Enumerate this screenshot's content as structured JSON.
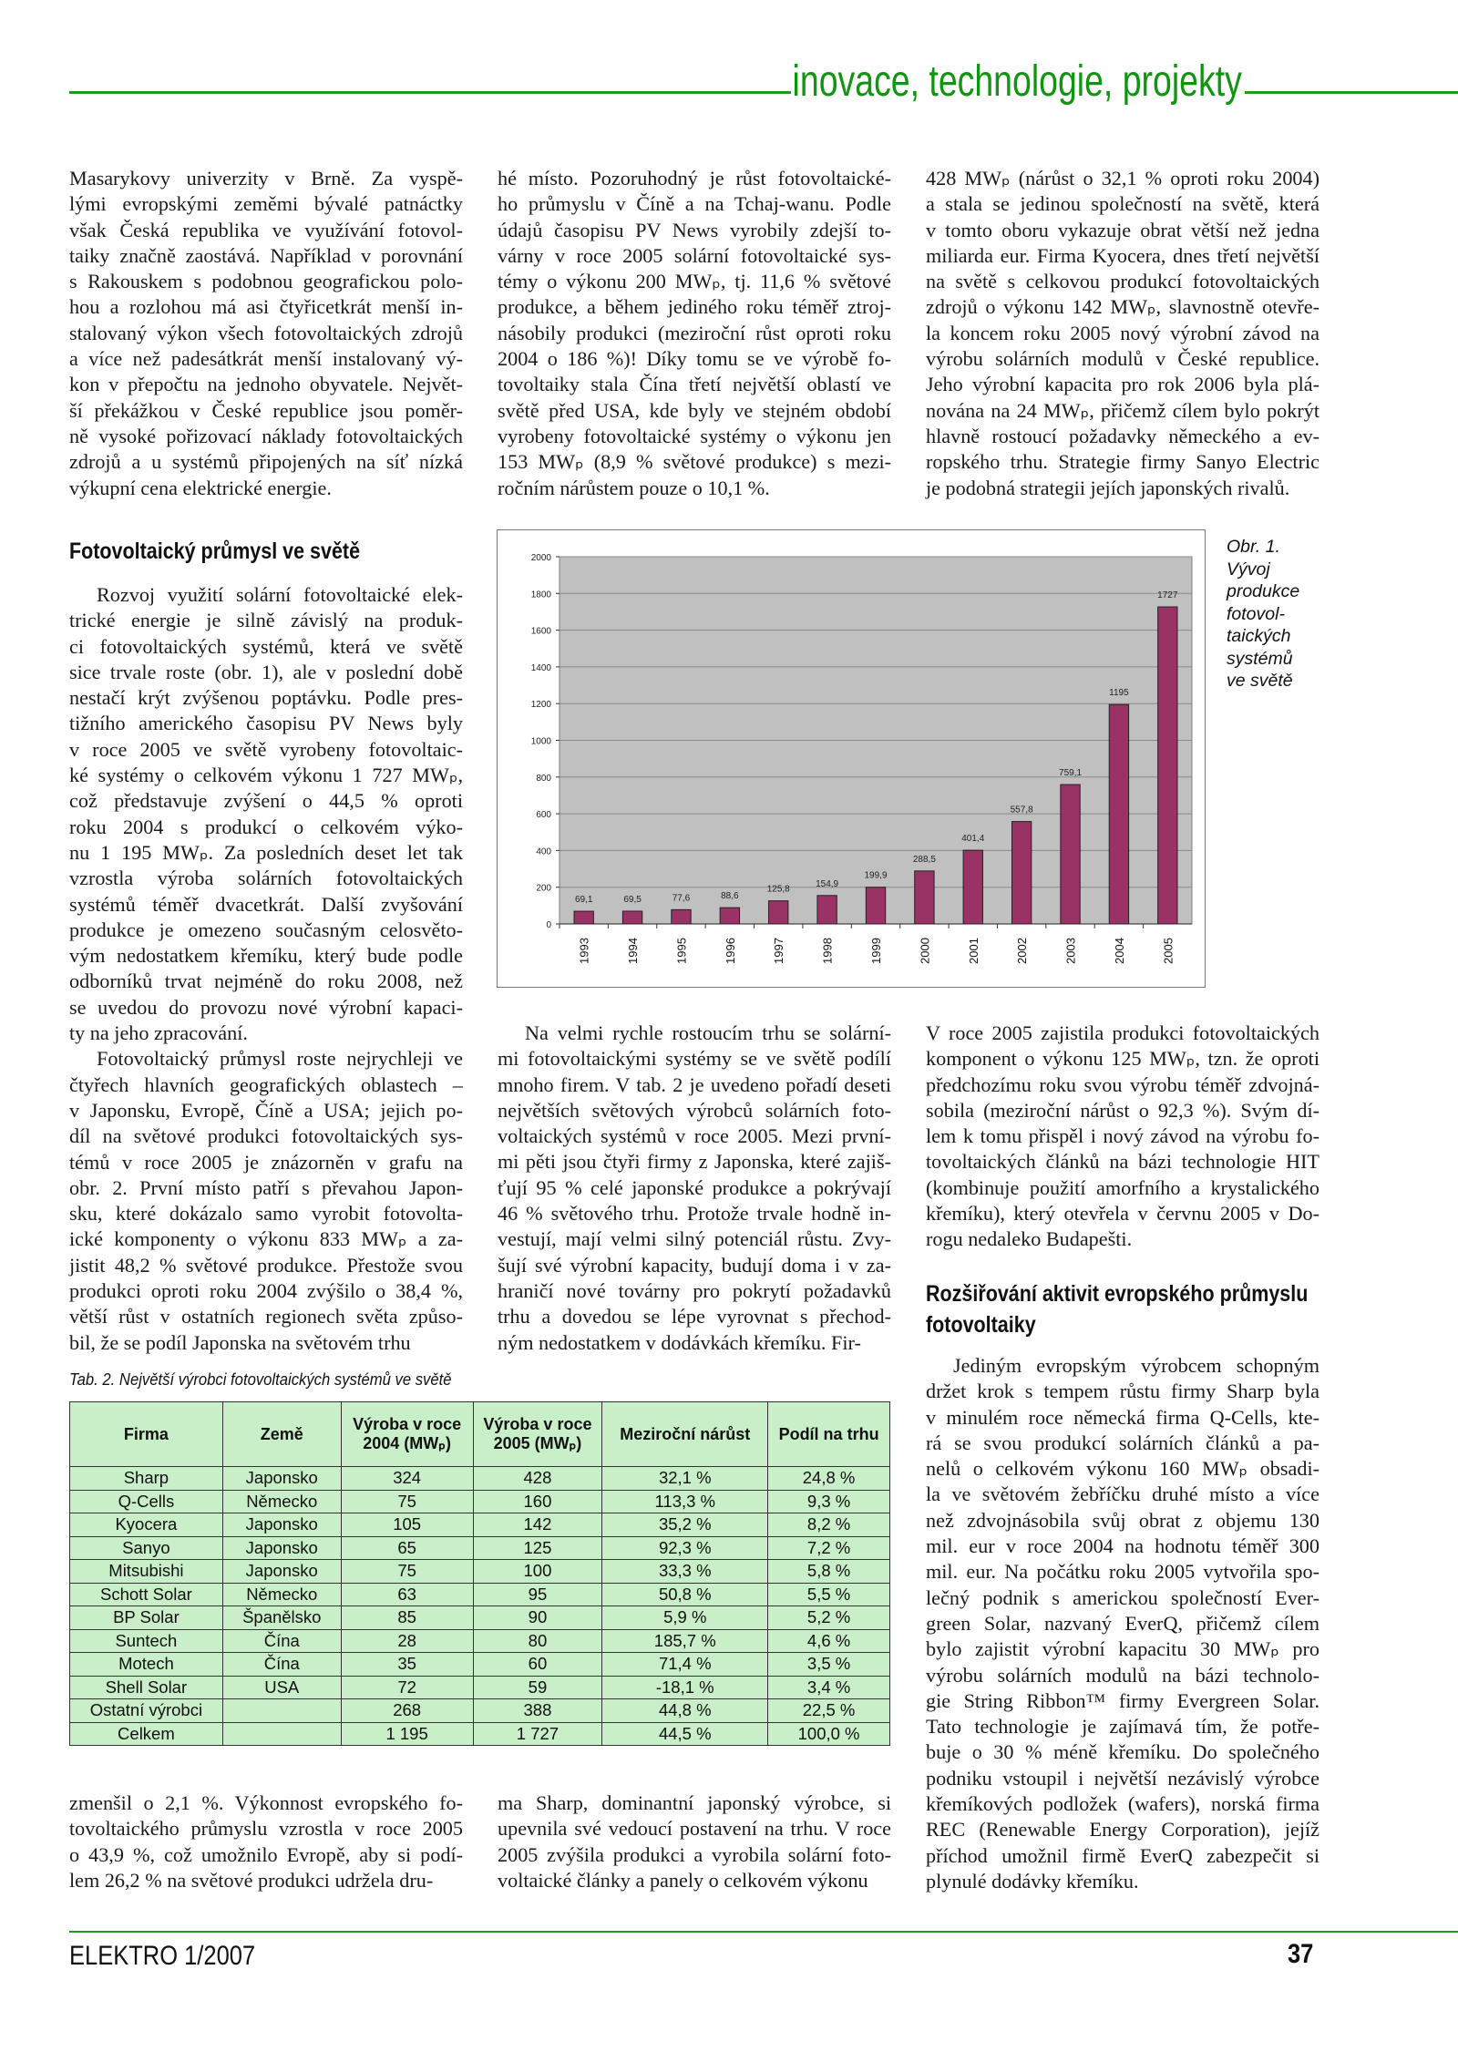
{
  "header": {
    "section_title": "inovace, technologie, projekty",
    "accent_color": "#1f9a1f"
  },
  "col1_top": [
    {
      "indent": false,
      "lines": [
        "Masarykovy univerzity v Brně. Za vyspě-",
        "lými evropskými zeměmi bývalé patnáctky",
        "však Česká republika ve využívání fotovol-",
        "taiky značně zaostává. Například v porovnání",
        "s Rakouskem s podobnou geografickou polo-",
        "hou a rozlohou má asi čtyřicetkrát menší in-",
        "stalovaný výkon všech fotovoltaických zdrojů",
        "a více než padesátkrát menší instalovaný vý-",
        "kon v přepočtu na jednoho obyvatele. Největ-",
        "ší překážkou v České republice jsou poměr-",
        "ně vysoké pořizovací náklady fotovoltaických",
        "zdrojů a u systémů připojených na síť nízká",
        "výkupní cena elektrické energie."
      ]
    }
  ],
  "col1_heading": "Fotovoltaický průmysl ve světě",
  "col1_body": [
    {
      "indent": true,
      "lines": [
        "Rozvoj využití solární fotovoltaické elek-",
        "trické energie je silně závislý na produk-",
        "ci fotovoltaických systémů, která ve světě",
        "sice trvale roste (obr. 1), ale v poslední době",
        "nestačí krýt zvýšenou poptávku. Podle pres-",
        "tižního amerického časopisu PV News byly",
        "v roce 2005 ve světě vyrobeny fotovoltaic-",
        "ké systémy o celkovém výkonu 1 727 MWₚ,",
        "což představuje zvýšení o 44,5 % oproti",
        "roku 2004 s produkcí o celkovém výko-",
        "nu 1 195 MWₚ. Za posledních deset let tak",
        "vzrostla výroba solárních fotovoltaických",
        "systémů téměř dvacetkrát. Další zvyšování",
        "produkce je omezeno současným celosvěto-",
        "vým nedostatkem křemíku, který bude podle",
        "odborníků trvat nejméně do roku 2008, než",
        "se uvedou do provozu nové výrobní kapaci-",
        "ty na jeho zpracování."
      ]
    },
    {
      "indent": true,
      "lines": [
        "Fotovoltaický průmysl roste nejrychleji ve",
        "čtyřech hlavních geografických oblastech –",
        "v Japonsku, Evropě, Číně a USA; jejich po-",
        "díl na světové produkci fotovoltaických sys-",
        "témů v roce 2005 je znázorněn v grafu na",
        "obr. 2. První místo patří s převahou Japon-",
        "sku, které dokázalo samo vyrobit fotovolta-",
        "ické komponenty o výkonu 833 MWₚ a za-",
        "jistit 48,2 % světové produkce. Přestože svou",
        "produkci oproti roku 2004 zvýšilo o 38,4 %,",
        "větší růst v ostatních regionech světa způso-",
        "bil, že se podíl Japonska na světovém trhu"
      ]
    }
  ],
  "col2_top": [
    {
      "indent": false,
      "lines": [
        "hé místo. Pozoruhodný je růst fotovoltaické-",
        "ho průmyslu v Číně a na Tchaj-wanu. Podle",
        "údajů časopisu PV News vyrobily zdejší to-",
        "várny v roce 2005 solární fotovoltaické sys-",
        "témy o výkonu 200 MWₚ, tj. 11,6 % světové",
        "produkce, a během jediného roku téměř ztroj-",
        "násobily produkci (meziroční růst oproti roku",
        "2004 o 186 %)! Díky tomu se ve výrobě fo-",
        "tovoltaiky stala Čína třetí největší oblastí ve",
        "světě před USA, kde byly ve stejném období",
        "vyrobeny fotovoltaické systémy o výkonu jen",
        "153 MWₚ (8,9 % světové produkce) s mezi-",
        "ročním nárůstem pouze o 10,1 %."
      ]
    }
  ],
  "col3_top": [
    {
      "indent": false,
      "lines": [
        "428 MWₚ (nárůst o 32,1 % oproti roku 2004)",
        "a stala se jedinou společností na světě, která",
        "v tomto oboru vykazuje obrat větší než jedna",
        "miliarda eur. Firma Kyocera, dnes třetí největší",
        "na světě s celkovou produkcí fotovoltaických",
        "zdrojů o výkonu 142 MWₚ, slavnostně otevře-",
        "la koncem roku 2005 nový výrobní závod na",
        "výrobu solárních modulů v České republice.",
        "Jeho výrobní kapacita pro rok 2006 byla plá-",
        "nována na 24 MWₚ, přičemž cílem bylo pokrýt",
        "hlavně rostoucí požadavky německého a ev-",
        "ropského trhu. Strategie firmy Sanyo Electric",
        "je podobná strategii jejích japonských rivalů."
      ]
    }
  ],
  "figure": {
    "caption_lines": [
      "Obr. 1.",
      "Vývoj",
      "produkce",
      "fotovol-",
      "taických",
      "systémů",
      "ve světě"
    ]
  },
  "chart_data": {
    "type": "bar",
    "title": "",
    "xlabel": "",
    "ylabel": "",
    "categories": [
      "1993",
      "1994",
      "1995",
      "1996",
      "1997",
      "1998",
      "1999",
      "2000",
      "2001",
      "2002",
      "2003",
      "2004",
      "2005"
    ],
    "values": [
      69.1,
      69.5,
      77.6,
      88.6,
      125.8,
      154.9,
      199.9,
      288.5,
      401.4,
      557.8,
      759.1,
      1195,
      1727
    ],
    "value_labels": [
      "69,1",
      "69,5",
      "77,6",
      "88,6",
      "125,8",
      "154,9",
      "199,9",
      "288,5",
      "401,4",
      "557,8",
      "759,1",
      "1195",
      "1727"
    ],
    "ylim": [
      0,
      2000
    ],
    "yticks": [
      0,
      200,
      400,
      600,
      800,
      1000,
      1200,
      1400,
      1600,
      1800,
      2000
    ],
    "grid": true,
    "legend": "none",
    "bar_color": "#993366",
    "plot_background": "#c0c0c0"
  },
  "col2_mid": [
    {
      "indent": true,
      "lines": [
        "Na velmi rychle rostoucím trhu se solární-",
        "mi fotovoltaickými systémy se ve světě podílí",
        "mnoho firem. V tab. 2 je uvedeno pořadí deseti",
        "největších světových výrobců solárních foto-",
        "voltaických systémů v roce 2005. Mezi první-",
        "mi pěti jsou čtyři firmy z Japonska, které zajiš-",
        "ťují 95 % celé japonské produkce a pokrývají",
        "46 % světového trhu. Protože trvale hodně in-",
        "vestují, mají velmi silný potenciál růstu. Zvy-",
        "šují své výrobní kapacity, budují doma i v za-",
        "hraničí nové továrny pro pokrytí požadavků",
        "trhu a dovedou se lépe vyrovnat s přechod-",
        "ným nedostatkem v dodávkách křemíku. Fir-"
      ]
    }
  ],
  "col3_mid": [
    {
      "indent": false,
      "lines": [
        "V roce 2005 zajistila produkci fotovoltaických",
        "komponent o výkonu 125 MWₚ, tzn. že oproti",
        "předchozímu roku svou výrobu téměř zdvojná-",
        "sobila (meziroční nárůst o 92,3 %). Svým dí-",
        "lem k tomu přispěl i nový závod na výrobu fo-",
        "tovoltaických článků na bázi technologie HIT",
        "(kombinuje použití amorfního a krystalického",
        "křemíku), který otevřela v červnu 2005 v Do-",
        "rogu nedaleko Budapešti."
      ]
    }
  ],
  "col3_heading": [
    "Rozšiřování aktivit evropského průmyslu",
    "fotovoltaiky"
  ],
  "col3_body": [
    {
      "indent": true,
      "lines": [
        "Jediným evropským výrobcem schopným",
        "držet krok s tempem růstu firmy Sharp byla",
        "v minulém roce německá firma Q-Cells, kte-",
        "rá se svou produkcí solárních článků a pa-",
        "nelů o celkovém výkonu 160 MWₚ obsadi-",
        "la ve světovém žebříčku druhé místo a více",
        "než zdvojnásobila svůj obrat z objemu 130",
        "mil. eur v roce 2004 na hodnotu téměř 300",
        "mil. eur. Na počátku roku 2005 vytvořila spo-",
        "lečný podnik s americkou společností Ever-",
        "green Solar, nazvaný EverQ, přičemž cílem",
        "bylo zajistit výrobní kapacitu 30 MWₚ pro",
        "výrobu solárních modulů na bázi technolo-",
        "gie String Ribbon™ firmy Evergreen Solar.",
        "Tato technologie je zajímavá tím, že potře-",
        "buje o 30 % méně křemíku. Do společného",
        "podniku vstoupil i největší nezávislý výrobce",
        "křemíkových podložek (wafers), norská firma",
        "REC (Renewable Energy Corporation), jejíž",
        "příchod umožnil firmě EverQ zabezpečit si",
        "plynulé dodávky křemíku."
      ]
    }
  ],
  "table": {
    "caption": "Tab. 2. Největší výrobci fotovoltaických systémů ve světě",
    "headers": [
      "Firma",
      "Země",
      "Výroba v roce 2004 (MWₚ)",
      "Výroba v roce 2005 (MWₚ)",
      "Meziroční nárůst",
      "Podíl na trhu"
    ],
    "rows": [
      [
        "Sharp",
        "Japonsko",
        "324",
        "428",
        "32,1 %",
        "24,8 %"
      ],
      [
        "Q-Cells",
        "Německo",
        "75",
        "160",
        "113,3 %",
        "9,3 %"
      ],
      [
        "Kyocera",
        "Japonsko",
        "105",
        "142",
        "35,2 %",
        "8,2 %"
      ],
      [
        "Sanyo",
        "Japonsko",
        "65",
        "125",
        "92,3 %",
        "7,2 %"
      ],
      [
        "Mitsubishi",
        "Japonsko",
        "75",
        "100",
        "33,3 %",
        "5,8 %"
      ],
      [
        "Schott Solar",
        "Německo",
        "63",
        "95",
        "50,8 %",
        "5,5 %"
      ],
      [
        "BP Solar",
        "Španělsko",
        "85",
        "90",
        "5,9 %",
        "5,2 %"
      ],
      [
        "Suntech",
        "Čína",
        "28",
        "80",
        "185,7 %",
        "4,6 %"
      ],
      [
        "Motech",
        "Čína",
        "35",
        "60",
        "71,4 %",
        "3,5 %"
      ],
      [
        "Shell Solar",
        "USA",
        "72",
        "59",
        "-18,1 %",
        "3,4 %"
      ],
      [
        "Ostatní výrobci",
        "",
        "268",
        "388",
        "44,8 %",
        "22,5 %"
      ],
      [
        "Celkem",
        "",
        "1 195",
        "1 727",
        "44,5 %",
        "100,0 %"
      ]
    ],
    "background_color": "#c9efc9"
  },
  "col1_bottom": [
    {
      "indent": false,
      "lines": [
        "zmenšil o 2,1 %. Výkonnost evropského fo-",
        "tovoltaického průmyslu vzrostla v roce 2005",
        "o 43,9 %, což umožnilo Evropě, aby si podí-",
        "lem 26,2 % na světové produkci udržela dru-"
      ]
    }
  ],
  "col2_bottom": [
    {
      "indent": false,
      "lines": [
        "ma Sharp, dominantní japonský výrobce, si",
        "upevnila své vedoucí postavení na trhu. V roce",
        "2005 zvýšila produkci a vyrobila solární foto-",
        "voltaické články a panely o celkovém výkonu"
      ]
    }
  ],
  "footer": {
    "magazine": "ELEKTRO 1/2007",
    "page_number": "37"
  }
}
